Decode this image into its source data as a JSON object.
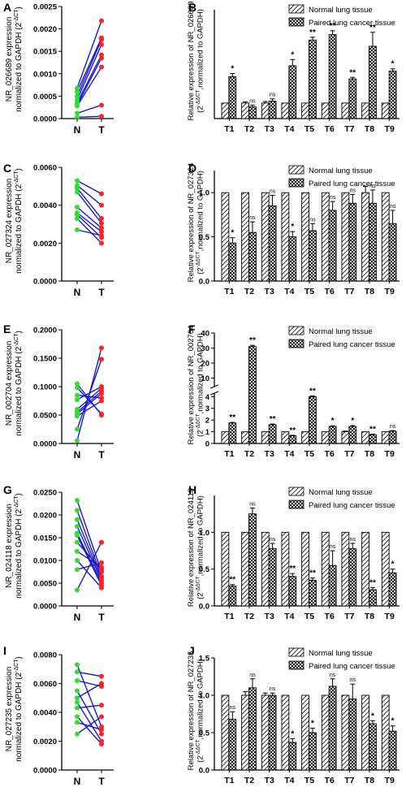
{
  "colors": {
    "normal_dot": "#33dd33",
    "tumor_dot": "#ff2222",
    "pair_line": "#1a1acc",
    "axis": "#000000"
  },
  "chart_data": [
    {
      "panel": "A",
      "type": "scatter",
      "subtype": "paired-dot",
      "ylabel_main": "NR_026689 expression",
      "ylabel_sub": "normalized to GAPDH (2",
      "ylabel_sup": "-ΔCT",
      "ylabel_end": ")",
      "yticks": [
        "0.0000",
        "0.0005",
        "0.0010",
        "0.0015",
        "0.0020",
        "0.0025"
      ],
      "ylim": [
        0,
        0.0025
      ],
      "categories": [
        "N",
        "T"
      ],
      "pairs": [
        [
          0.00068,
          0.00218
        ],
        [
          0.0006,
          0.0018
        ],
        [
          0.0005,
          0.00176
        ],
        [
          0.00042,
          0.00165
        ],
        [
          0.00035,
          0.00142
        ],
        [
          0.0003,
          0.00135
        ],
        [
          0.00028,
          0.00115
        ],
        [
          0.00012,
          0.0003
        ],
        [
          3e-05,
          5e-05
        ]
      ]
    },
    {
      "panel": "B",
      "type": "bar",
      "ylabel_main": "Relative expression of NR_026689",
      "ylabel_sub": "(2",
      "ylabel_sup": "-ΔΔCT",
      "ylabel_end": ",normalized to GAPDH)",
      "legend": [
        "Normal lung tissue",
        "Paired lung cancer tissue"
      ],
      "categories": [
        "T1",
        "T2",
        "T3",
        "T4",
        "T5",
        "T6",
        "T7",
        "T8",
        "T9"
      ],
      "ylim": [
        0,
        7
      ],
      "yticks": [],
      "break": null,
      "normal": [
        1,
        1,
        1,
        1,
        1,
        1,
        1,
        1,
        1
      ],
      "tumor": [
        2.7,
        0.75,
        1.12,
        3.4,
        5.05,
        5.4,
        2.55,
        4.65,
        3.05
      ],
      "tumor_err": [
        0.2,
        0.12,
        0.15,
        0.4,
        0.18,
        0.25,
        0.1,
        0.9,
        0.15
      ],
      "normal_err": [
        0,
        0.08,
        0.1,
        0,
        0,
        0,
        0,
        0,
        0
      ],
      "sig": [
        "*",
        "ns",
        "ns",
        "*",
        "**",
        "**",
        "**",
        "**",
        "*"
      ]
    },
    {
      "panel": "C",
      "type": "scatter",
      "subtype": "paired-dot",
      "ylabel_main": "NR_027324 expression",
      "ylabel_sub": "normalized to GAPDH (2",
      "ylabel_sup": "-ΔCT",
      "ylabel_end": ")",
      "yticks": [
        "0.0000",
        "0.0020",
        "0.0040",
        "0.0060"
      ],
      "ylim": [
        0,
        0.006
      ],
      "categories": [
        "N",
        "T"
      ],
      "pairs": [
        [
          0.0053,
          0.0046
        ],
        [
          0.00505,
          0.004
        ],
        [
          0.0049,
          0.0033
        ],
        [
          0.0047,
          0.00305
        ],
        [
          0.0039,
          0.0028
        ],
        [
          0.0036,
          0.0026
        ],
        [
          0.0035,
          0.0023
        ],
        [
          0.0033,
          0.002
        ],
        [
          0.0027,
          0.0024
        ]
      ]
    },
    {
      "panel": "D",
      "type": "bar",
      "ylabel_main": "Relative expression of NR_027324",
      "ylabel_sub": "(2",
      "ylabel_sup": "-ΔΔCT",
      "ylabel_end": ",normalized to GAPDH)",
      "legend": [
        "Normal lung tissue",
        "Paired lung cancer tissue"
      ],
      "categories": [
        "T1",
        "T2",
        "T3",
        "T4",
        "T5",
        "T6",
        "T7",
        "T8",
        "T9"
      ],
      "ylim": [
        0,
        1.25
      ],
      "yticks": [
        "0.0",
        "0.5",
        "1.0"
      ],
      "break": null,
      "normal": [
        1,
        1,
        1,
        1,
        1,
        1,
        1,
        1,
        1
      ],
      "tumor": [
        0.43,
        0.55,
        0.85,
        0.5,
        0.57,
        0.8,
        0.88,
        0.88,
        0.65
      ],
      "tumor_err": [
        0.06,
        0.12,
        0.12,
        0.06,
        0.08,
        0.1,
        0.1,
        0.15,
        0.15
      ],
      "normal_err": [
        0,
        0,
        0,
        0,
        0,
        0,
        0,
        0.07,
        0
      ],
      "sig": [
        "*",
        "ns",
        "ns",
        "*",
        "ns",
        "ns",
        "ns",
        "ns",
        "ns"
      ]
    },
    {
      "panel": "E",
      "type": "scatter",
      "subtype": "paired-dot",
      "ylabel_main": "NR_002704 expression",
      "ylabel_sub": "normalized to GAPDH (2",
      "ylabel_sup": "-ΔCT",
      "ylabel_end": ")",
      "yticks": [
        "0.0000",
        "0.0500",
        "0.1000",
        "0.1500",
        "0.2000"
      ],
      "ylim": [
        0,
        0.2
      ],
      "categories": [
        "N",
        "T"
      ],
      "pairs": [
        [
          0.105,
          0.05
        ],
        [
          0.098,
          0.052
        ],
        [
          0.085,
          0.08
        ],
        [
          0.077,
          0.1
        ],
        [
          0.06,
          0.097
        ],
        [
          0.055,
          0.092
        ],
        [
          0.052,
          0.088
        ],
        [
          0.048,
          0.075
        ],
        [
          0.025,
          0.148
        ],
        [
          0.005,
          0.168
        ]
      ]
    },
    {
      "panel": "F",
      "type": "bar",
      "ylabel_main": "Relative expression of NR_002704",
      "ylabel_sub": "(2",
      "ylabel_sup": "-ΔΔCT",
      "ylabel_end": ",normalized to GAPDH)",
      "legend": [
        "Normal lung tissue",
        "Paired lung cancer tissue"
      ],
      "categories": [
        "T1",
        "T2",
        "T3",
        "T4",
        "T5",
        "T6",
        "T7",
        "T8",
        "T9"
      ],
      "yticks": [
        "0",
        "1",
        "2",
        "3",
        "4",
        "10",
        "20",
        "30",
        "40"
      ],
      "break": {
        "lower": [
          0,
          4.3
        ],
        "upper": [
          4.3,
          40
        ]
      },
      "normal": [
        1,
        1,
        1,
        1,
        1,
        1,
        1,
        1,
        1
      ],
      "tumor": [
        1.75,
        31,
        1.6,
        0.65,
        4.0,
        1.45,
        1.45,
        0.75,
        1.05
      ],
      "tumor_err": [
        0.05,
        0.8,
        0.06,
        0.05,
        0.06,
        0.06,
        0.08,
        0.05,
        0.05
      ],
      "normal_err": [
        0,
        0,
        0,
        0,
        0,
        0,
        0.06,
        0,
        0
      ],
      "sig": [
        "**",
        "**",
        "**",
        "**",
        "**",
        "*",
        "*",
        "**",
        "ns"
      ]
    },
    {
      "panel": "G",
      "type": "scatter",
      "subtype": "paired-dot",
      "ylabel_main": "NR_024118 expression",
      "ylabel_sub": "normalized to GAPDH (2",
      "ylabel_sup": "-ΔCT",
      "ylabel_end": ")",
      "yticks": [
        "0.0000",
        "0.0050",
        "0.0100",
        "0.0150",
        "0.0200",
        "0.0250"
      ],
      "ylim": [
        0,
        0.025
      ],
      "categories": [
        "N",
        "T"
      ],
      "pairs": [
        [
          0.0232,
          0.0075
        ],
        [
          0.021,
          0.0065
        ],
        [
          0.019,
          0.006
        ],
        [
          0.0175,
          0.0055
        ],
        [
          0.016,
          0.005
        ],
        [
          0.0155,
          0.0045
        ],
        [
          0.014,
          0.008
        ],
        [
          0.012,
          0.0085
        ],
        [
          0.01,
          0.004
        ],
        [
          0.008,
          0.0095
        ],
        [
          0.0035,
          0.014
        ]
      ]
    },
    {
      "panel": "H",
      "type": "bar",
      "ylabel_main": "Relative expression of NR_024118",
      "ylabel_sub": "(2",
      "ylabel_sup": "-ΔΔCT",
      "ylabel_end": ",normalized to GAPDH)",
      "legend": [
        "Normal lung tissue",
        "Paired lung cancer tissue"
      ],
      "categories": [
        "T1",
        "T2",
        "T3",
        "T4",
        "T5",
        "T6",
        "T7",
        "T8",
        "T9"
      ],
      "ylim": [
        0,
        1.5
      ],
      "yticks": [
        "0.0",
        "0.5",
        "1.0"
      ],
      "break": null,
      "normal": [
        1,
        1,
        1,
        1,
        1,
        1,
        1,
        1,
        1
      ],
      "tumor": [
        0.27,
        1.25,
        0.78,
        0.4,
        0.35,
        0.55,
        0.78,
        0.22,
        0.45
      ],
      "tumor_err": [
        0.02,
        0.08,
        0.07,
        0.04,
        0.03,
        0.2,
        0.07,
        0.03,
        0.05
      ],
      "normal_err": [
        0,
        0,
        0,
        0,
        0,
        0,
        0,
        0,
        0
      ],
      "sig": [
        "**",
        "ns",
        "ns",
        "**",
        "**",
        "ns",
        "ns",
        "**",
        "*"
      ]
    },
    {
      "panel": "I",
      "type": "scatter",
      "subtype": "paired-dot",
      "ylabel_main": "NR_027235 expression",
      "ylabel_sub": "normalized to GAPDH (2",
      "ylabel_sup": "-ΔCT",
      "ylabel_end": ")",
      "yticks": [
        "0.0000",
        "0.0020",
        "0.0040",
        "0.0060",
        "0.0080"
      ],
      "ylim": [
        0,
        0.008
      ],
      "categories": [
        "N",
        "T"
      ],
      "pairs": [
        [
          0.0073,
          0.003
        ],
        [
          0.0068,
          0.0065
        ],
        [
          0.0062,
          0.0058
        ],
        [
          0.0055,
          0.0025
        ],
        [
          0.005,
          0.006
        ],
        [
          0.0047,
          0.002
        ],
        [
          0.0043,
          0.0045
        ],
        [
          0.0037,
          0.0018
        ],
        [
          0.0033,
          0.0028
        ],
        [
          0.0025,
          0.0037
        ]
      ]
    },
    {
      "panel": "J",
      "type": "bar",
      "ylabel_main": "Relative expression of NR_027235",
      "ylabel_sub": "(2",
      "ylabel_sup": "-ΔΔCT",
      "ylabel_end": ",normalized to GAPDH)",
      "legend": [
        "Normal lung tissue",
        "Paired lung cancer tissue"
      ],
      "categories": [
        "T1",
        "T2",
        "T3",
        "T4",
        "T5",
        "T6",
        "T7",
        "T8",
        "T9"
      ],
      "ylim": [
        0,
        1.5
      ],
      "yticks": [
        "0.0",
        "0.5",
        "1.0",
        "1.5"
      ],
      "break": null,
      "normal": [
        1,
        1,
        1,
        1,
        1,
        1,
        1,
        1,
        1
      ],
      "tumor": [
        0.68,
        1.1,
        1.0,
        0.37,
        0.5,
        1.12,
        0.95,
        0.62,
        0.52
      ],
      "tumor_err": [
        0.1,
        0.12,
        0.03,
        0.05,
        0.06,
        0.1,
        0.2,
        0.04,
        0.07
      ],
      "normal_err": [
        0,
        0.05,
        0.03,
        0,
        0,
        0,
        0,
        0,
        0
      ],
      "sig": [
        "ns",
        "ns",
        "ns",
        "*",
        "*",
        "ns",
        "ns",
        "*",
        "*"
      ]
    }
  ]
}
